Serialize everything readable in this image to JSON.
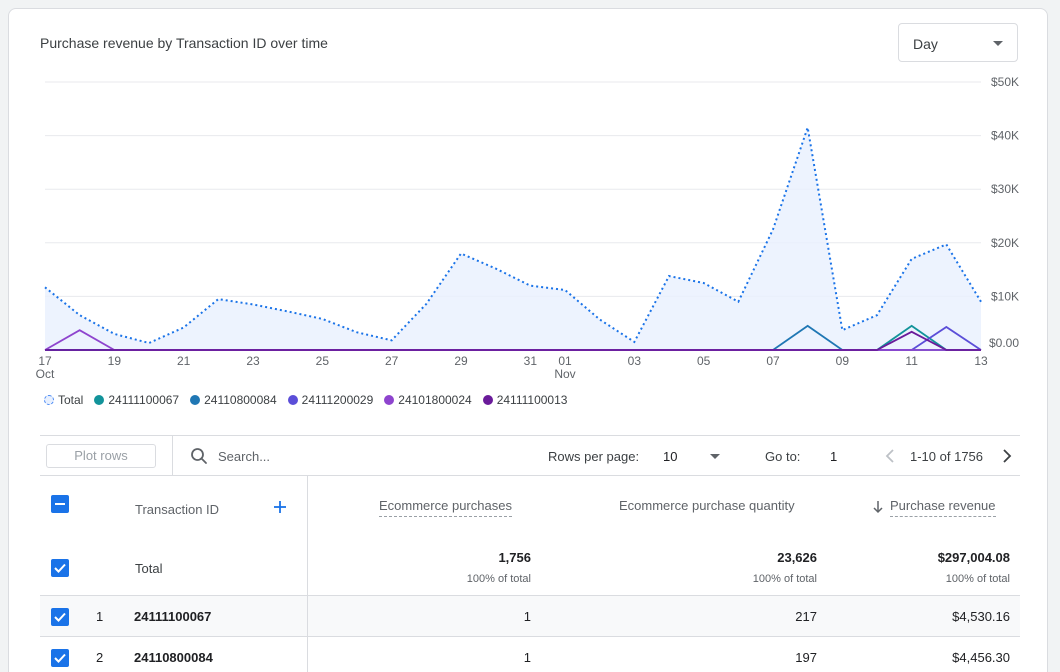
{
  "chart_data": {
    "type": "line",
    "title": "Purchase revenue by Transaction ID over time",
    "x": [
      "17 Oct",
      "18 Oct",
      "19 Oct",
      "20 Oct",
      "21 Oct",
      "22 Oct",
      "23 Oct",
      "24 Oct",
      "25 Oct",
      "26 Oct",
      "27 Oct",
      "28 Oct",
      "29 Oct",
      "30 Oct",
      "31 Oct",
      "01 Nov",
      "02 Nov",
      "03 Nov",
      "04 Nov",
      "05 Nov",
      "06 Nov",
      "07 Nov",
      "08 Nov",
      "09 Nov",
      "10 Nov",
      "11 Nov",
      "12 Nov",
      "13 Nov"
    ],
    "x_tick_labels": [
      {
        "label": "17",
        "sub": "Oct",
        "index": 0
      },
      {
        "label": "19",
        "index": 2
      },
      {
        "label": "21",
        "index": 4
      },
      {
        "label": "23",
        "index": 6
      },
      {
        "label": "25",
        "index": 8
      },
      {
        "label": "27",
        "index": 10
      },
      {
        "label": "29",
        "index": 12
      },
      {
        "label": "31",
        "index": 14
      },
      {
        "label": "01",
        "sub": "Nov",
        "index": 15
      },
      {
        "label": "03",
        "index": 17
      },
      {
        "label": "05",
        "index": 19
      },
      {
        "label": "07",
        "index": 21
      },
      {
        "label": "09",
        "index": 23
      },
      {
        "label": "11",
        "index": 25
      },
      {
        "label": "13",
        "index": 27
      }
    ],
    "y_tick_labels": [
      {
        "label": "$0.00",
        "value": 0
      },
      {
        "label": "$10K",
        "value": 10000
      },
      {
        "label": "$20K",
        "value": 20000
      },
      {
        "label": "$30K",
        "value": 30000
      },
      {
        "label": "$40K",
        "value": 40000
      },
      {
        "label": "$50K",
        "value": 50000
      }
    ],
    "ylim": [
      0,
      50000
    ],
    "y_axis_position": "right",
    "grid": true,
    "legend_position": "bottom-left",
    "series": [
      {
        "name": "Total",
        "color": "#1a73e8",
        "style": "dotted-area",
        "values": [
          11700,
          6500,
          3000,
          1300,
          4200,
          9500,
          8500,
          7200,
          5800,
          3300,
          1800,
          8600,
          18000,
          15200,
          12000,
          11200,
          5700,
          1500,
          13800,
          12500,
          9000,
          22500,
          41500,
          3700,
          6500,
          17000,
          19700,
          9000
        ]
      },
      {
        "name": "24111100067",
        "color": "#12939a",
        "values": [
          0,
          0,
          0,
          0,
          0,
          0,
          0,
          0,
          0,
          0,
          0,
          0,
          0,
          0,
          0,
          0,
          0,
          0,
          0,
          0,
          0,
          0,
          0,
          0,
          0,
          4500,
          0,
          0
        ]
      },
      {
        "name": "24110800084",
        "color": "#1f77b4",
        "values": [
          0,
          0,
          0,
          0,
          0,
          0,
          0,
          0,
          0,
          0,
          0,
          0,
          0,
          0,
          0,
          0,
          0,
          0,
          0,
          0,
          0,
          0,
          4500,
          0,
          0,
          0,
          0,
          0
        ]
      },
      {
        "name": "24111200029",
        "color": "#5b4ed8",
        "values": [
          0,
          0,
          0,
          0,
          0,
          0,
          0,
          0,
          0,
          0,
          0,
          0,
          0,
          0,
          0,
          0,
          0,
          0,
          0,
          0,
          0,
          0,
          0,
          0,
          0,
          0,
          4300,
          0
        ]
      },
      {
        "name": "24101800024",
        "color": "#8e44ce",
        "values": [
          0,
          3700,
          0,
          0,
          0,
          0,
          0,
          0,
          0,
          0,
          0,
          0,
          0,
          0,
          0,
          0,
          0,
          0,
          0,
          0,
          0,
          0,
          0,
          0,
          0,
          0,
          0,
          0
        ]
      },
      {
        "name": "24111100013",
        "color": "#6a1b9a",
        "values": [
          0,
          0,
          0,
          0,
          0,
          0,
          0,
          0,
          0,
          0,
          0,
          0,
          0,
          0,
          0,
          0,
          0,
          0,
          0,
          0,
          0,
          0,
          0,
          0,
          0,
          3400,
          0,
          0
        ]
      }
    ]
  },
  "header": {
    "title": "Purchase revenue by Transaction ID over time",
    "date_granularity": "Day"
  },
  "legend": {
    "items": [
      {
        "label": "Total",
        "color": "#1a73e8",
        "total": true
      },
      {
        "label": "24111100067",
        "color": "#12939a"
      },
      {
        "label": "24110800084",
        "color": "#1f77b4"
      },
      {
        "label": "24111200029",
        "color": "#5b4ed8"
      },
      {
        "label": "24101800024",
        "color": "#8e44ce"
      },
      {
        "label": "24111100013",
        "color": "#6a1b9a"
      }
    ]
  },
  "toolbar": {
    "plot_rows_label": "Plot rows",
    "search_placeholder": "Search...",
    "rows_per_page_label": "Rows per page:",
    "rows_per_page_value": "10",
    "goto_label": "Go to:",
    "goto_value": "1",
    "page_range": "1-10 of 1756"
  },
  "table": {
    "headers": {
      "dimension": "Transaction ID",
      "purchases": "Ecommerce purchases",
      "quantity": "Ecommerce purchase quantity",
      "revenue": "Purchase revenue"
    },
    "total": {
      "label": "Total",
      "purchases": "1,756",
      "quantity": "23,626",
      "revenue": "$297,004.08",
      "pct": "100% of total"
    },
    "rows": [
      {
        "index": "1",
        "id": "24111100067",
        "purchases": "1",
        "quantity": "217",
        "revenue": "$4,530.16"
      },
      {
        "index": "2",
        "id": "24110800084",
        "purchases": "1",
        "quantity": "197",
        "revenue": "$4,456.30"
      }
    ]
  }
}
